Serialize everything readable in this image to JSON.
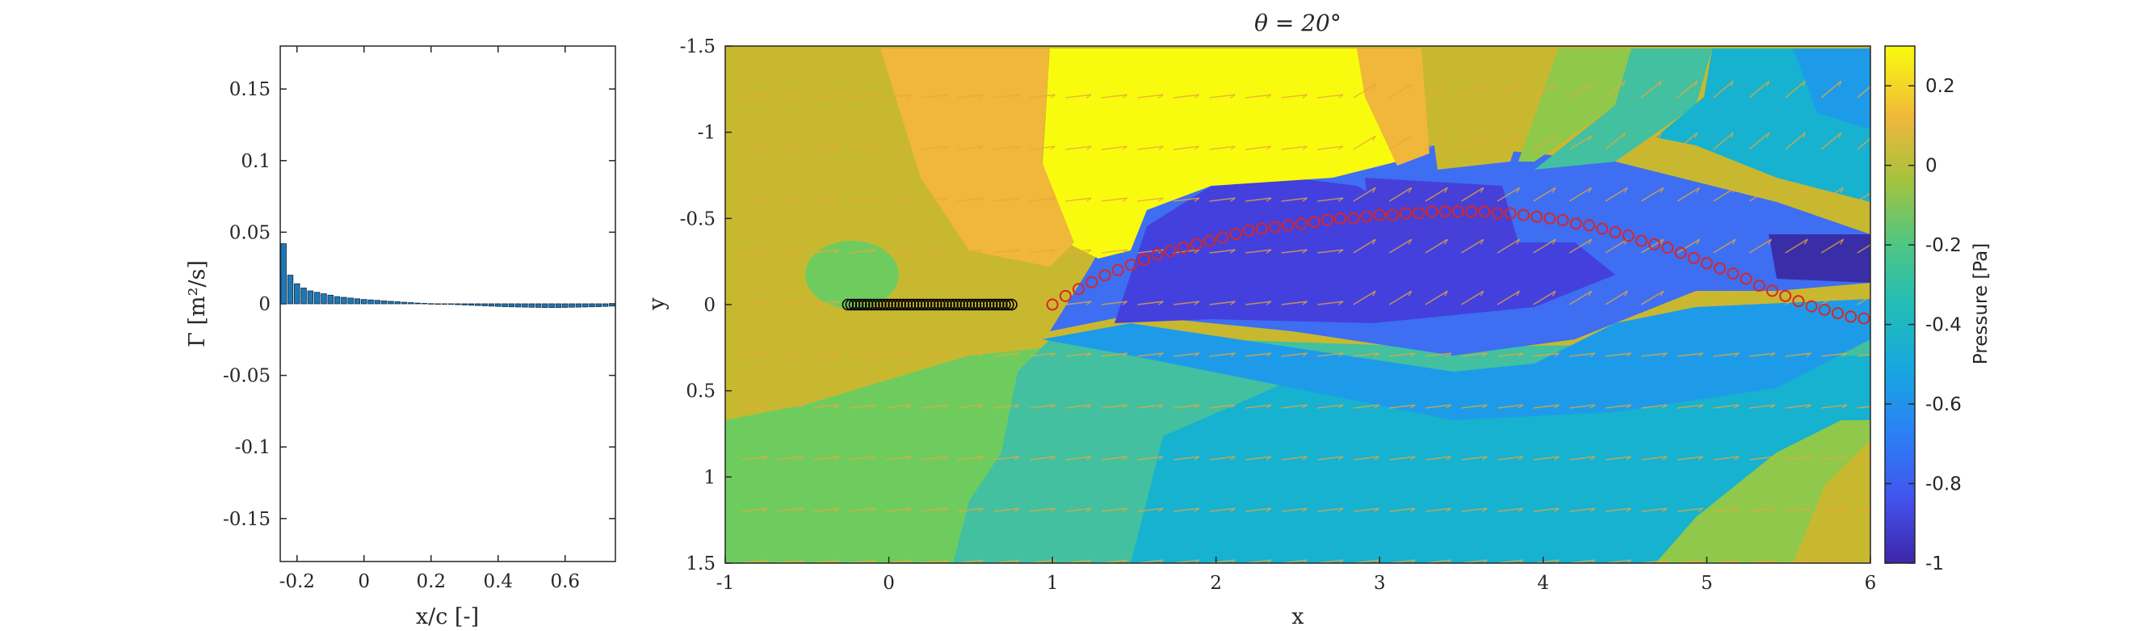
{
  "chart_data": [
    {
      "type": "bar",
      "xlabel": "x/c [-]",
      "ylabel": "Γ [m²/s]",
      "xlim": [
        -0.25,
        0.75
      ],
      "ylim": [
        -0.18,
        0.18
      ],
      "xticks": [
        "-0.2",
        "0",
        "0.2",
        "0.4",
        "0.6"
      ],
      "yticks": [
        "0.15",
        "0.1",
        "0.05",
        "0",
        "-0.05",
        "-0.1",
        "-0.15"
      ],
      "bar_color": "#1f77b4",
      "x": [
        -0.24,
        -0.22,
        -0.2,
        -0.18,
        -0.16,
        -0.14,
        -0.12,
        -0.1,
        -0.08,
        -0.06,
        -0.04,
        -0.02,
        0,
        0.02,
        0.04,
        0.06,
        0.08,
        0.1,
        0.12,
        0.14,
        0.16,
        0.18,
        0.2,
        0.22,
        0.24,
        0.26,
        0.28,
        0.3,
        0.32,
        0.34,
        0.36,
        0.38,
        0.4,
        0.42,
        0.44,
        0.46,
        0.48,
        0.5,
        0.52,
        0.54,
        0.56,
        0.58,
        0.6,
        0.62,
        0.64,
        0.66,
        0.68,
        0.7,
        0.72,
        0.74
      ],
      "values": [
        0.042,
        0.02,
        0.014,
        0.011,
        0.009,
        0.008,
        0.007,
        0.006,
        0.005,
        0.0045,
        0.004,
        0.0035,
        0.003,
        0.0027,
        0.0024,
        0.002,
        0.0017,
        0.0014,
        0.0011,
        0.0008,
        0.0005,
        0.0003,
        0.0001,
        0,
        -0.0002,
        -0.0004,
        -0.0006,
        -0.0008,
        -0.001,
        -0.0012,
        -0.0014,
        -0.0016,
        -0.0018,
        -0.002,
        -0.0021,
        -0.0022,
        -0.0023,
        -0.0024,
        -0.0025,
        -0.0026,
        -0.0026,
        -0.0026,
        -0.0025,
        -0.0024,
        -0.0023,
        -0.0022,
        -0.0021,
        -0.002,
        -0.0018,
        -0.0016
      ]
    },
    {
      "type": "heatmap",
      "title": "θ = 20°",
      "xlabel": "x",
      "ylabel": "y",
      "xlim": [
        -1,
        6
      ],
      "ylim": [
        -1.5,
        1.5
      ],
      "y_reversed": true,
      "xticks": [
        "-1",
        "0",
        "1",
        "2",
        "3",
        "4",
        "5",
        "6"
      ],
      "yticks": [
        "-1.5",
        "-1",
        "-0.5",
        "0",
        "0.5",
        "1",
        "1.5"
      ],
      "colorbar": {
        "label": "Pressure [Pa]",
        "range": [
          -1,
          0.3
        ],
        "ticks": [
          "0.2",
          "0",
          "-0.2",
          "-0.4",
          "-0.6",
          "-0.8",
          "-1"
        ],
        "colormap": "parula"
      },
      "body_points": {
        "color": "#000000",
        "x": [
          -0.25,
          -0.23,
          -0.21,
          -0.19,
          -0.17,
          -0.15,
          -0.13,
          -0.11,
          -0.09,
          -0.07,
          -0.05,
          -0.03,
          -0.01,
          0.01,
          0.03,
          0.05,
          0.07,
          0.09,
          0.11,
          0.13,
          0.15,
          0.17,
          0.19,
          0.21,
          0.23,
          0.25,
          0.27,
          0.29,
          0.31,
          0.33,
          0.35,
          0.37,
          0.39,
          0.41,
          0.43,
          0.45,
          0.47,
          0.49,
          0.51,
          0.53,
          0.55,
          0.57,
          0.59,
          0.61,
          0.63,
          0.65,
          0.67,
          0.69,
          0.71,
          0.73,
          0.75
        ],
        "y": 0
      },
      "wake_points": {
        "color": "#d62728",
        "x": [
          1,
          1.08,
          1.16,
          1.24,
          1.32,
          1.4,
          1.48,
          1.56,
          1.64,
          1.72,
          1.8,
          1.88,
          1.96,
          2.04,
          2.12,
          2.2,
          2.28,
          2.36,
          2.44,
          2.52,
          2.6,
          2.68,
          2.76,
          2.84,
          2.92,
          3.0,
          3.08,
          3.16,
          3.24,
          3.32,
          3.4,
          3.48,
          3.56,
          3.64,
          3.72,
          3.8,
          3.88,
          3.96,
          4.04,
          4.12,
          4.2,
          4.28,
          4.36,
          4.44,
          4.52,
          4.6,
          4.68,
          4.76,
          4.84,
          4.92,
          5.0,
          5.08,
          5.16,
          5.24,
          5.32,
          5.4,
          5.48,
          5.56,
          5.64,
          5.72,
          5.8,
          5.88,
          5.96
        ],
        "y": [
          0,
          -0.05,
          -0.09,
          -0.13,
          -0.17,
          -0.2,
          -0.23,
          -0.26,
          -0.29,
          -0.31,
          -0.33,
          -0.35,
          -0.37,
          -0.39,
          -0.41,
          -0.43,
          -0.44,
          -0.45,
          -0.46,
          -0.47,
          -0.48,
          -0.49,
          -0.5,
          -0.5,
          -0.51,
          -0.52,
          -0.52,
          -0.53,
          -0.53,
          -0.54,
          -0.54,
          -0.54,
          -0.54,
          -0.54,
          -0.53,
          -0.53,
          -0.52,
          -0.51,
          -0.5,
          -0.49,
          -0.47,
          -0.46,
          -0.44,
          -0.42,
          -0.4,
          -0.37,
          -0.35,
          -0.33,
          -0.3,
          -0.27,
          -0.24,
          -0.21,
          -0.18,
          -0.15,
          -0.11,
          -0.08,
          -0.05,
          -0.02,
          0.01,
          0.03,
          0.05,
          0.07,
          0.08
        ]
      },
      "velocity_arrows": {
        "color": "#e8a83a"
      }
    }
  ]
}
